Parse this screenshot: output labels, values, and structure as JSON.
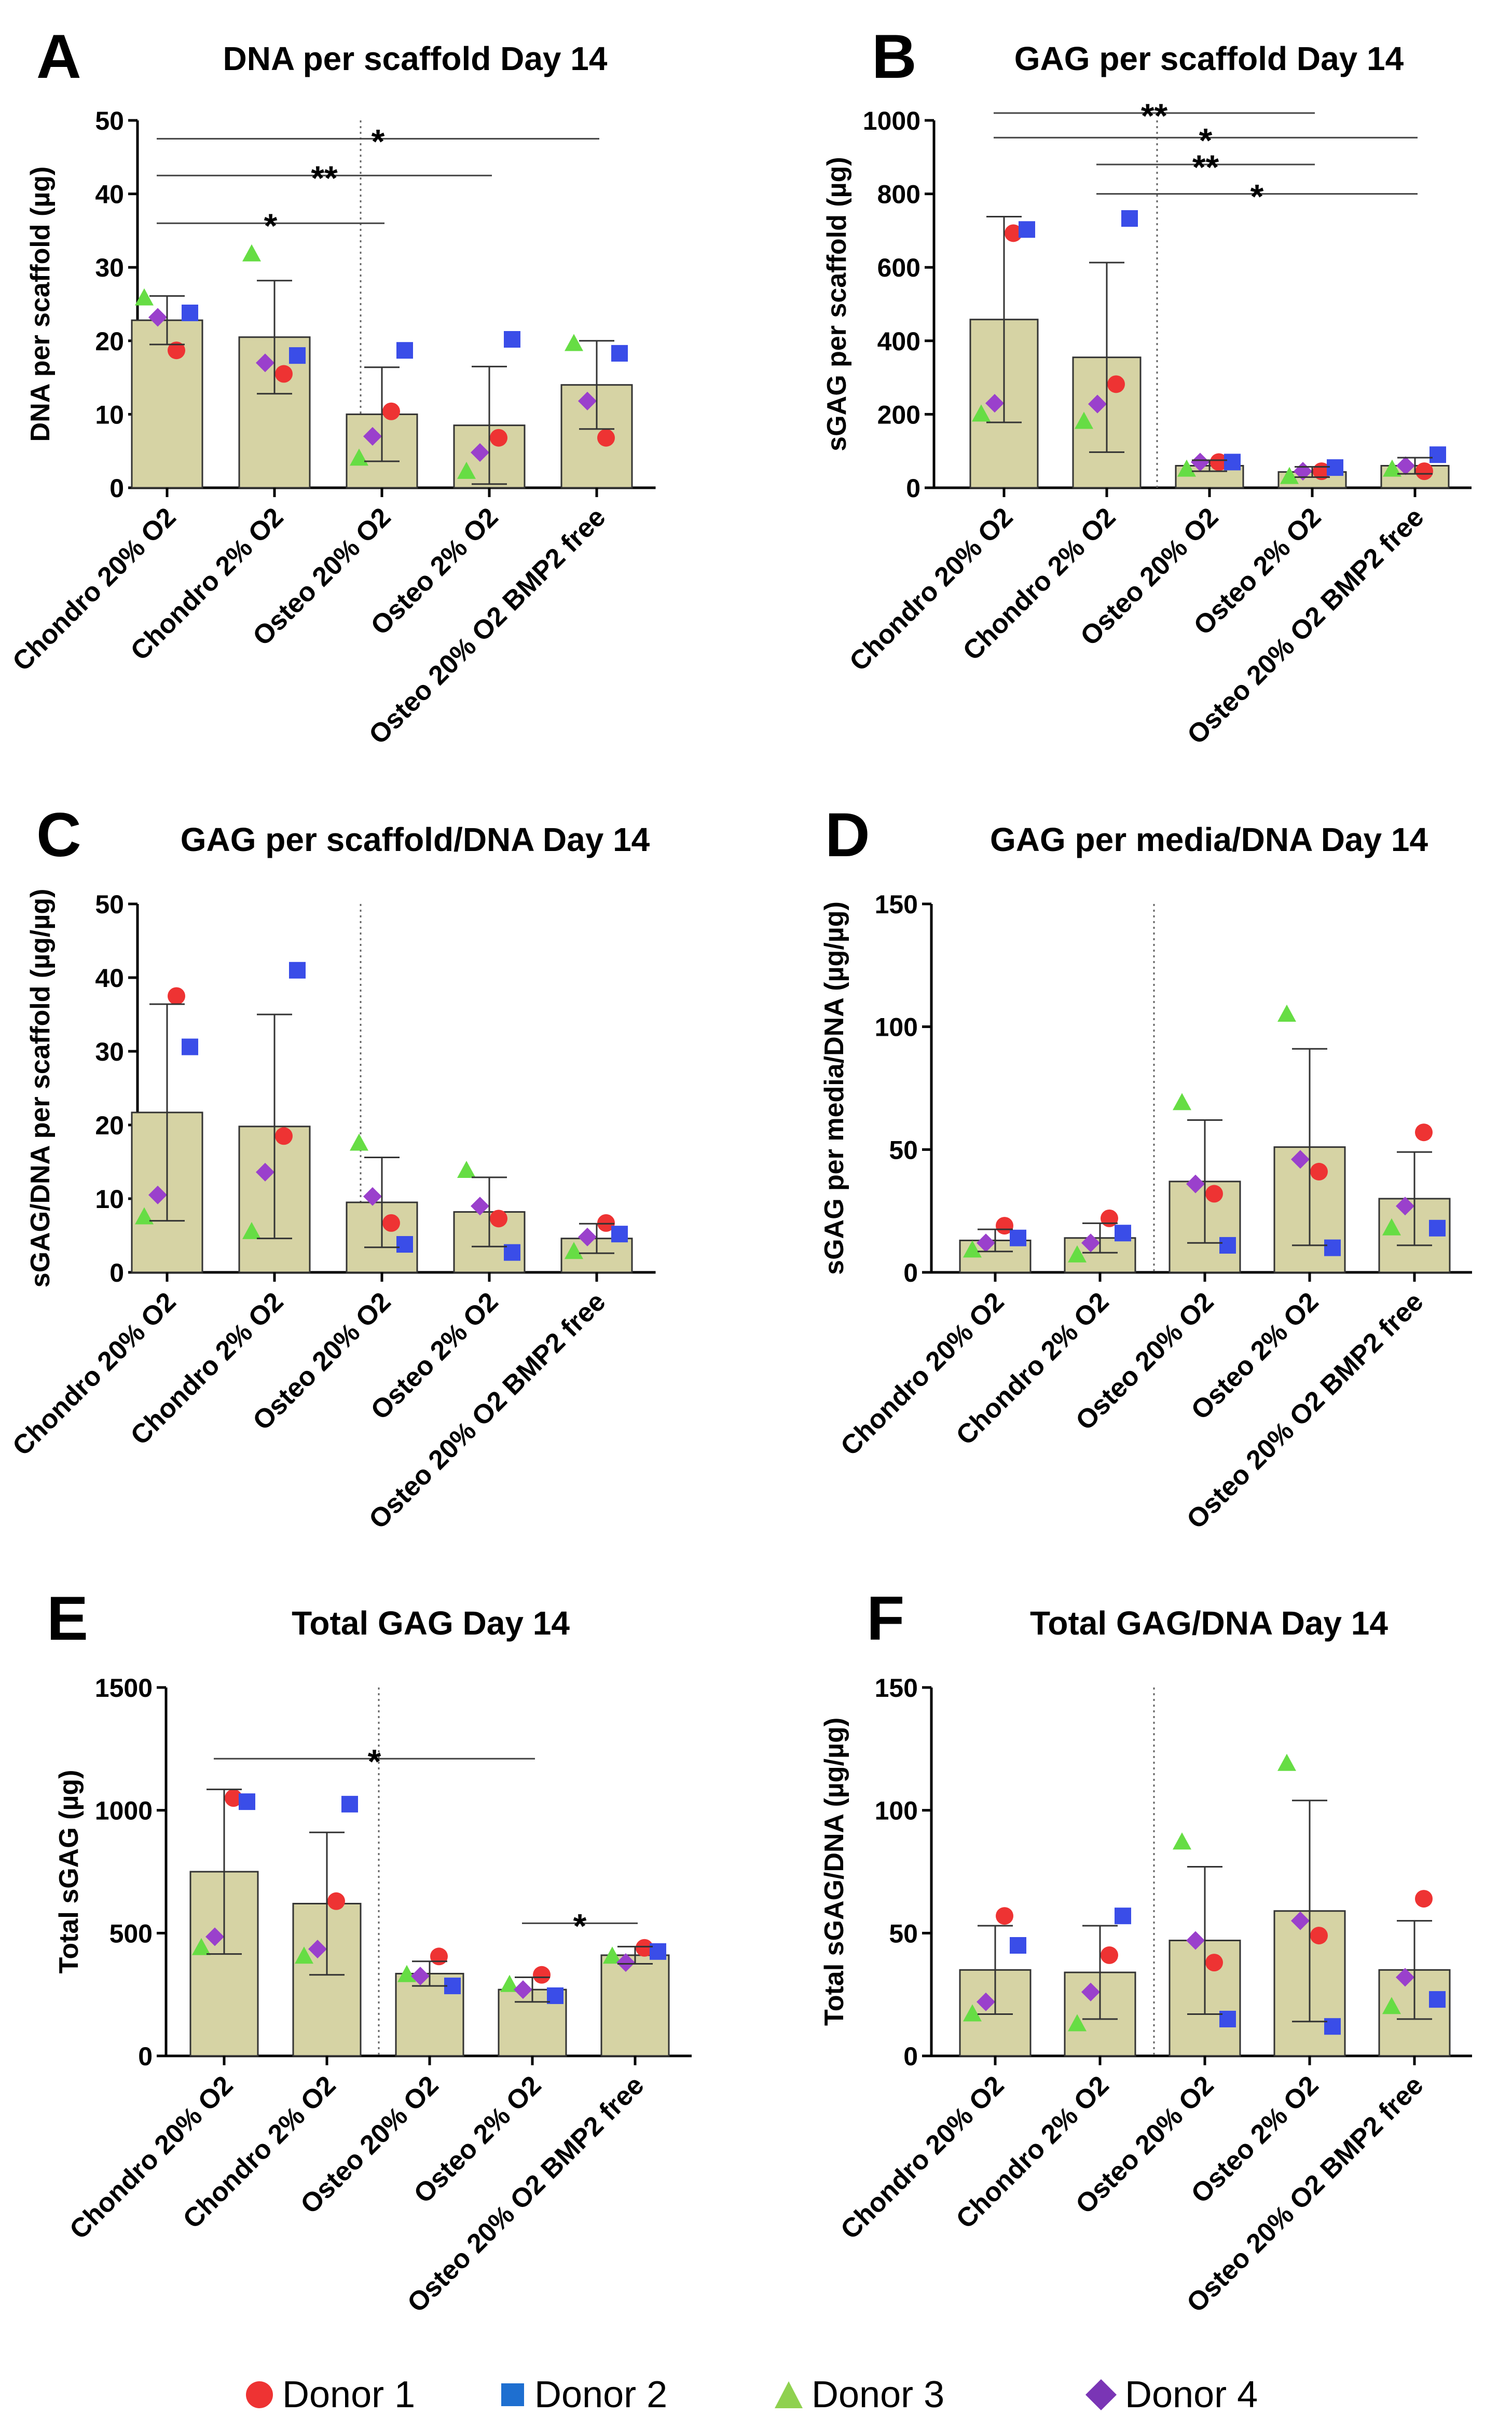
{
  "colors": {
    "bar_fill": "#d6d3a4",
    "bar_stroke": "#333333",
    "donor1": "#ee3333",
    "donor2": "#3a4de8",
    "donor3": "#66dd44",
    "donor4": "#9a40cc"
  },
  "legend": [
    {
      "label": "Donor 1",
      "shape": "circle",
      "color": "#ee3333"
    },
    {
      "label": "Donor 2",
      "shape": "square",
      "color": "#1e6fd0"
    },
    {
      "label": "Donor 3",
      "shape": "triangle",
      "color": "#8fd14f"
    },
    {
      "label": "Donor 4",
      "shape": "diamond",
      "color": "#7a35b5"
    }
  ],
  "chart_data": [
    {
      "panel": "A",
      "type": "bar",
      "title": "DNA per scaffold Day 14",
      "ylabel": "DNA per scaffold (µg)",
      "ylim": [
        0,
        50
      ],
      "yticks": [
        0,
        10,
        20,
        30,
        40,
        50
      ],
      "categories": [
        "Chondro 20% O2",
        "Chondro 2% O2",
        "Osteo 20% O2",
        "Osteo 2% O2",
        "Osteo 20% O2 BMP2 free"
      ],
      "means": [
        22.8,
        20.5,
        10,
        8.5,
        14
      ],
      "errors": [
        3.3,
        7.7,
        6.4,
        8,
        6
      ],
      "donors": {
        "Donor 1": [
          18.7,
          15.5,
          10.4,
          6.8,
          6.8
        ],
        "Donor 2": [
          23.8,
          18,
          18.7,
          20.2,
          18.3
        ],
        "Donor 3": [
          25.8,
          31.8,
          4,
          2.2,
          19.6
        ],
        "Donor 4": [
          23.2,
          17,
          7,
          4.8,
          11.8
        ]
      },
      "significance": [
        {
          "from": 0,
          "to": 4,
          "label": "*",
          "y": 47.5
        },
        {
          "from": 0,
          "to": 3,
          "label": "**",
          "y": 42.5
        },
        {
          "from": 0,
          "to": 2,
          "label": "*",
          "y": 36
        }
      ]
    },
    {
      "panel": "B",
      "type": "bar",
      "title": "GAG per scaffold Day 14",
      "ylabel": "sGAG per scaffold (µg)",
      "ylim": [
        0,
        1000
      ],
      "yticks": [
        0,
        200,
        400,
        600,
        800,
        1000
      ],
      "categories": [
        "Chondro 20% O2",
        "Chondro 2% O2",
        "Osteo 20% O2",
        "Osteo 2% O2",
        "Osteo 20% O2 BMP2 free"
      ],
      "means": [
        458,
        355,
        60,
        43,
        60
      ],
      "errors": [
        280,
        258,
        15,
        14,
        22
      ],
      "donors": {
        "Donor 1": [
          693,
          282,
          70,
          45,
          45
        ],
        "Donor 2": [
          703,
          733,
          70,
          55,
          90
        ],
        "Donor 3": [
          200,
          180,
          50,
          30,
          50
        ],
        "Donor 4": [
          230,
          228,
          70,
          45,
          60
        ]
      },
      "significance": [
        {
          "from": 0,
          "to": 3,
          "label": "**",
          "y": 1020
        },
        {
          "from": 0,
          "to": 4,
          "label": "*",
          "y": 953
        },
        {
          "from": 1,
          "to": 3,
          "label": "**",
          "y": 880
        },
        {
          "from": 1,
          "to": 4,
          "label": "*",
          "y": 800
        }
      ]
    },
    {
      "panel": "C",
      "type": "bar",
      "title": "GAG per scaffold/DNA Day 14",
      "ylabel": "sGAG/DNA per scaffold (µg/µg)",
      "ylim": [
        0,
        50
      ],
      "yticks": [
        0,
        10,
        20,
        30,
        40,
        50
      ],
      "categories": [
        "Chondro 20% O2",
        "Chondro 2% O2",
        "Osteo 20% O2",
        "Osteo 2% O2",
        "Osteo 20% O2 BMP2 free"
      ],
      "means": [
        21.7,
        19.8,
        9.5,
        8.2,
        4.6
      ],
      "errors": [
        14.7,
        15.2,
        6.1,
        4.7,
        2
      ],
      "donors": {
        "Donor 1": [
          37.5,
          18.5,
          6.7,
          7.3,
          6.7
        ],
        "Donor 2": [
          30.6,
          41,
          3.8,
          2.7,
          5.2
        ],
        "Donor 3": [
          7.5,
          5.5,
          17.5,
          13.8,
          2.8
        ],
        "Donor 4": [
          10.5,
          13.6,
          10.3,
          9,
          4.8
        ]
      },
      "significance": []
    },
    {
      "panel": "D",
      "type": "bar",
      "title": "GAG per media/DNA Day 14",
      "ylabel": "sGAG per media/DNA (µg/µg)",
      "ylim": [
        0,
        150
      ],
      "yticks": [
        0,
        50,
        100,
        150
      ],
      "categories": [
        "Chondro 20% O2",
        "Chondro 2% O2",
        "Osteo 20% O2",
        "Osteo 2% O2",
        "Osteo 20% O2 BMP2 free"
      ],
      "means": [
        13,
        14,
        37,
        51,
        30
      ],
      "errors": [
        4.5,
        6,
        25,
        40,
        19
      ],
      "donors": {
        "Donor 1": [
          19,
          22,
          32,
          41,
          57
        ],
        "Donor 2": [
          14,
          16,
          11,
          10,
          18
        ],
        "Donor 3": [
          9,
          7,
          69,
          105,
          18
        ],
        "Donor 4": [
          12,
          12,
          36,
          46,
          27
        ]
      },
      "significance": []
    },
    {
      "panel": "E",
      "type": "bar",
      "title": "Total GAG Day 14",
      "ylabel": "Total sGAG (µg)",
      "ylim": [
        0,
        1500
      ],
      "yticks": [
        0,
        500,
        1000,
        1500
      ],
      "categories": [
        "Chondro 20% O2",
        "Chondro 2% O2",
        "Osteo 20% O2",
        "Osteo 2% O2",
        "Osteo 20% O2 BMP2 free"
      ],
      "means": [
        750,
        620,
        335,
        270,
        410
      ],
      "errors": [
        335,
        290,
        50,
        50,
        35
      ],
      "donors": {
        "Donor 1": [
          1050,
          630,
          405,
          330,
          440
        ],
        "Donor 2": [
          1035,
          1025,
          285,
          245,
          425
        ],
        "Donor 3": [
          440,
          405,
          330,
          290,
          405
        ],
        "Donor 4": [
          485,
          435,
          325,
          270,
          380
        ]
      },
      "significance": [
        {
          "from": 0,
          "to": 3,
          "label": "*",
          "y": 1210
        },
        {
          "from": 3,
          "to": 4,
          "label": "*",
          "y": 540
        }
      ]
    },
    {
      "panel": "F",
      "type": "bar",
      "title": "Total GAG/DNA Day 14",
      "ylabel": "Total sGAG/DNA (µg/µg)",
      "ylim": [
        0,
        150
      ],
      "yticks": [
        0,
        50,
        100,
        150
      ],
      "categories": [
        "Chondro 20% O2",
        "Chondro 2% O2",
        "Osteo 20% O2",
        "Osteo 2% O2",
        "Osteo 20% O2 BMP2 free"
      ],
      "means": [
        35,
        34,
        47,
        59,
        35
      ],
      "errors": [
        18,
        19,
        30,
        45,
        20
      ],
      "donors": {
        "Donor 1": [
          57,
          41,
          38,
          49,
          64
        ],
        "Donor 2": [
          45,
          57,
          15,
          12,
          23
        ],
        "Donor 3": [
          17,
          13,
          87,
          119,
          20
        ],
        "Donor 4": [
          22,
          26,
          47,
          55,
          32
        ]
      },
      "significance": []
    }
  ]
}
